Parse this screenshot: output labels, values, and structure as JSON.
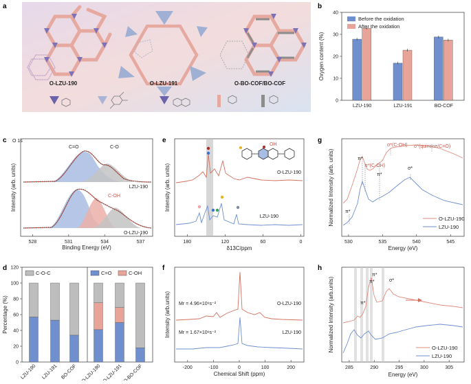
{
  "colors": {
    "blue": "#6f8fcf",
    "blue_line": "#6c8ecf",
    "red": "#e8a498",
    "red_line": "#d2705f",
    "gray": "#bdbdbd",
    "panel_a_bg_left": "#cfc6e3",
    "panel_a_bg_right": "#f2d6d3"
  },
  "panel_a": {
    "label": "a",
    "structures": [
      "O-LZU-190",
      "O-LZU-191",
      "O-BO-COF/BO-COF"
    ]
  },
  "panel_b": {
    "label": "b",
    "chart_data": {
      "type": "bar",
      "title": "",
      "ylabel": "Oxygen content (%)",
      "xlabel": "",
      "ylim": [
        0,
        40
      ],
      "yticks": [
        0,
        10,
        20,
        30,
        40
      ],
      "categories": [
        "LZU-190",
        "LZU-191",
        "BO-COF"
      ],
      "series": [
        {
          "name": "Before the oxidation",
          "values": [
            27.8,
            16.9,
            28.8
          ]
        },
        {
          "name": "After the oxidation",
          "values": [
            32.8,
            22.8,
            27.4
          ]
        }
      ],
      "legend": "top-right"
    }
  },
  "panel_c": {
    "label": "c",
    "header": "O 1s",
    "ylabel": "Intensity (arb. units)",
    "xlabel": "Binding Energy (eV)",
    "xticks": [
      "528",
      "531",
      "534",
      "537"
    ],
    "xlim": [
      527,
      538
    ],
    "samples": [
      "LZU-190",
      "O-LZU-190"
    ],
    "peaks_top": [
      "C=O",
      "C-O"
    ],
    "peaks_bottom": [
      "C-OH"
    ]
  },
  "panel_d": {
    "label": "d",
    "chart_data": {
      "type": "bar",
      "stacked": true,
      "ylabel": "Percentage (%)",
      "ylim": [
        0,
        120
      ],
      "yticks": [
        0,
        20,
        40,
        60,
        80,
        100,
        120
      ],
      "categories": [
        "LZU-190",
        "LZU-191",
        "BO-COF",
        "O-LZU-190",
        "O-LZU-191",
        "O-BO-COF"
      ],
      "series": [
        {
          "name": "C=O",
          "values": [
            57,
            53,
            34,
            41,
            50,
            18
          ]
        },
        {
          "name": "C-OH",
          "values": [
            0,
            0,
            0,
            34,
            19,
            0
          ]
        },
        {
          "name": "C-O-C",
          "values": [
            43,
            47,
            66,
            25,
            31,
            82
          ]
        }
      ],
      "legend_labels": [
        "C-O-C",
        "C=O",
        "C-OH"
      ]
    }
  },
  "panel_e": {
    "label": "e",
    "ylabel": "Intensity (arb. units)",
    "xlabel": "δ13C/ppm",
    "xticks": [
      "180",
      "120",
      "60",
      "0"
    ],
    "xlim": [
      200,
      -5
    ],
    "samples": [
      "O-LZU-190",
      "LZU-190"
    ],
    "struct_label": "OH"
  },
  "panel_f": {
    "label": "f",
    "ylabel": "Intensity (arb.units)",
    "xlabel": "Chemical Shift (ppm)",
    "xticks": [
      "-200",
      "-100",
      "0",
      "100",
      "200"
    ],
    "xlim": [
      -250,
      250
    ],
    "samples": [
      {
        "name": "O-LZU-190",
        "mr": "Mr = 4.96×10⁶s⁻²"
      },
      {
        "name": "LZU-190",
        "mr": "Mr = 1.67×10⁶s⁻²"
      }
    ]
  },
  "panel_g": {
    "label": "g",
    "ylabel": "Normalized Intensity (arb. units)",
    "xlabel": "Energy (eV)",
    "xticks": [
      "530",
      "535",
      "540",
      "545"
    ],
    "xlim": [
      529,
      547
    ],
    "annotations_red": [
      "π*",
      "π*(C-OH)",
      "σ*(C-OH)",
      "σ*(quinone/C=O)"
    ],
    "annotations_black": [
      "π*",
      "σ*",
      "π*"
    ],
    "legend": [
      "O-LZU-190",
      "LZU-190"
    ]
  },
  "panel_h": {
    "label": "h",
    "ylabel": "Normalized Intensity (arb.units)",
    "xlabel": "Energy (eV)",
    "xticks": [
      "285",
      "290",
      "295",
      "300",
      "305"
    ],
    "xlim": [
      283.5,
      308
    ],
    "annotations": [
      "π*",
      "π*",
      "π*",
      "σ*"
    ],
    "legend": [
      "O-LZU-190",
      "LZU-190"
    ]
  }
}
